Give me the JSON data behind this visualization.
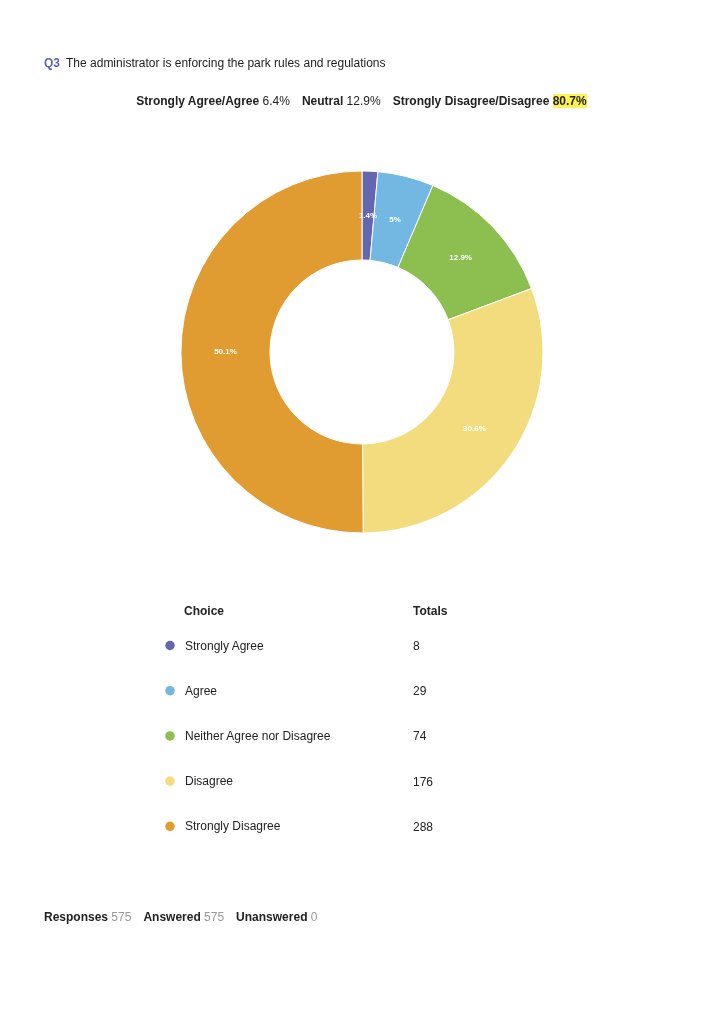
{
  "chart_data": {
    "type": "donut",
    "title": "The administrator is enforcing the park rules and regulations",
    "categories": [
      "Strongly Agree",
      "Agree",
      "Neither Agree nor Disagree",
      "Disagree",
      "Strongly Disagree"
    ],
    "values": [
      1.4,
      5,
      12.9,
      30.6,
      50.1
    ],
    "value_labels": [
      "1.4%",
      "5%",
      "12.9%",
      "30.6%",
      "50.1%"
    ],
    "colors": [
      "#6466b0",
      "#72b8e2",
      "#8cbf4f",
      "#f3dc7e",
      "#e09c30"
    ],
    "legend": "bottom",
    "legend_title": "Choice",
    "annotations": [
      "Q3",
      "Strongly Agree/Agree 6.4%",
      "Neutral 12.9%",
      "Strongly Disagree/Disagree 80.7%",
      "Totals",
      "Responses 575",
      "Answered 575",
      "Unanswered 0",
      "8",
      "29",
      "74",
      "176",
      "288"
    ]
  }
}
